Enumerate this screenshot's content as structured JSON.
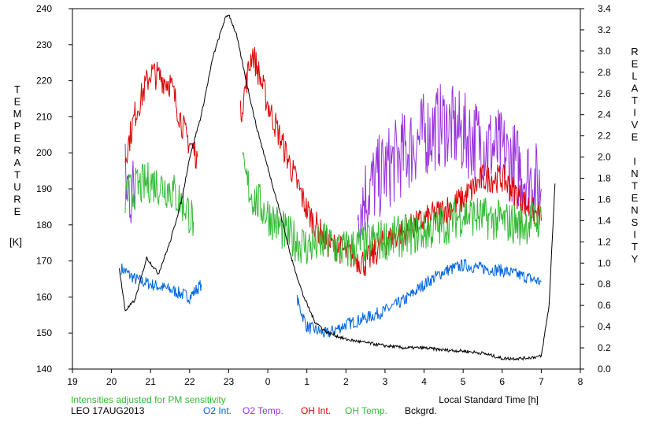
{
  "chart_data": {
    "type": "line",
    "xlabel": "Local Standard Time [h]",
    "ylabel_left": [
      "T",
      "E",
      "M",
      "P",
      "E",
      "R",
      "A",
      "T",
      "U",
      "R",
      "E"
    ],
    "ylabel_left_unit": "[K]",
    "ylabel_right": [
      "R",
      "E",
      "L",
      "A",
      "T",
      "I",
      "V",
      "E",
      "",
      "I",
      "N",
      "T",
      "E",
      "N",
      "S",
      "I",
      "T",
      "Y"
    ],
    "xlim": [
      19,
      32
    ],
    "ylim_left": [
      140,
      240
    ],
    "ylim_right": [
      0.0,
      3.4
    ],
    "x_ticks": [
      "19",
      "20",
      "21",
      "22",
      "23",
      "0",
      "1",
      "2",
      "3",
      "4",
      "5",
      "6",
      "7",
      "8"
    ],
    "y_ticks_left": [
      "140",
      "150",
      "160",
      "170",
      "180",
      "190",
      "200",
      "210",
      "220",
      "230",
      "240"
    ],
    "y_ticks_right": [
      "0.0",
      "0.2",
      "0.4",
      "0.6",
      "0.8",
      "1.0",
      "1.2",
      "1.4",
      "1.6",
      "1.8",
      "2.0",
      "2.2",
      "2.4",
      "2.6",
      "2.8",
      "3.0",
      "3.2",
      "3.4"
    ],
    "note": "Intensities adjusted for PM sensitivity",
    "station": "LEO 17AUG2013",
    "grid": false,
    "series": [
      {
        "name": "O2 Int.",
        "color": "#0066dd",
        "axis": "right",
        "x": [
          20.25,
          20.6,
          21.0,
          21.5,
          22.0,
          22.3,
          24.75,
          25.0,
          25.5,
          26.0,
          26.5,
          27.0,
          27.5,
          28.0,
          28.5,
          29.0,
          29.5,
          30.0,
          30.5,
          31.0
        ],
        "y": [
          0.95,
          0.85,
          0.8,
          0.75,
          0.68,
          0.8,
          0.65,
          0.4,
          0.33,
          0.42,
          0.48,
          0.55,
          0.65,
          0.8,
          0.92,
          0.98,
          0.95,
          0.93,
          0.88,
          0.82
        ]
      },
      {
        "name": "O2 Temp.",
        "color": "#9933dd",
        "axis": "left",
        "x": [
          20.35,
          20.6,
          26.3,
          26.6,
          27.0,
          27.5,
          28.0,
          28.5,
          29.0,
          29.5,
          30.0,
          30.5,
          31.0
        ],
        "y": [
          192,
          188,
          185,
          190,
          195,
          200,
          205,
          208,
          205,
          203,
          200,
          195,
          190
        ]
      },
      {
        "name": "OH Int.",
        "color": "#dd0000",
        "axis": "right",
        "x": [
          20.35,
          20.6,
          21.0,
          21.5,
          21.9,
          22.2,
          23.3,
          23.6,
          24.0,
          24.5,
          25.0,
          25.5,
          26.0,
          26.5,
          27.0,
          27.5,
          28.0,
          28.5,
          29.0,
          29.5,
          30.0,
          30.5,
          31.0
        ],
        "y": [
          2.0,
          2.4,
          2.8,
          2.7,
          2.2,
          2.0,
          2.4,
          3.0,
          2.5,
          2.0,
          1.5,
          1.2,
          1.1,
          1.0,
          1.2,
          1.3,
          1.4,
          1.5,
          1.6,
          1.8,
          1.8,
          1.6,
          1.4
        ]
      },
      {
        "name": "OH Temp.",
        "color": "#33bb33",
        "axis": "left",
        "x": [
          20.35,
          20.6,
          21.0,
          21.5,
          21.9,
          22.1,
          23.35,
          23.6,
          24.0,
          24.5,
          25.0,
          25.5,
          26.0,
          26.5,
          27.0,
          27.5,
          28.0,
          28.5,
          29.0,
          29.5,
          30.0,
          30.5,
          31.0
        ],
        "y": [
          188,
          190,
          192,
          190,
          185,
          181,
          195,
          188,
          183,
          177,
          174,
          175,
          173,
          175,
          176,
          177,
          178,
          180,
          183,
          182,
          181,
          180,
          182
        ]
      },
      {
        "name": "Bckgrd.",
        "color": "#000000",
        "axis": "right",
        "x": [
          20.2,
          20.35,
          20.6,
          20.9,
          21.2,
          21.5,
          21.8,
          22.0,
          22.3,
          22.6,
          22.9,
          23.0,
          23.2,
          23.4,
          23.7,
          24.0,
          24.3,
          24.6,
          24.9,
          25.2,
          25.5,
          26.0,
          26.5,
          27.0,
          27.5,
          28.0,
          28.5,
          29.0,
          29.5,
          30.0,
          30.5,
          31.0,
          31.2,
          31.35
        ],
        "y": [
          0.95,
          0.55,
          0.65,
          1.05,
          0.9,
          1.2,
          1.6,
          2.0,
          2.4,
          2.95,
          3.3,
          3.35,
          3.15,
          2.8,
          2.3,
          1.9,
          1.5,
          1.05,
          0.7,
          0.45,
          0.35,
          0.28,
          0.25,
          0.22,
          0.2,
          0.2,
          0.18,
          0.17,
          0.15,
          0.1,
          0.1,
          0.12,
          0.6,
          1.75
        ]
      }
    ]
  }
}
